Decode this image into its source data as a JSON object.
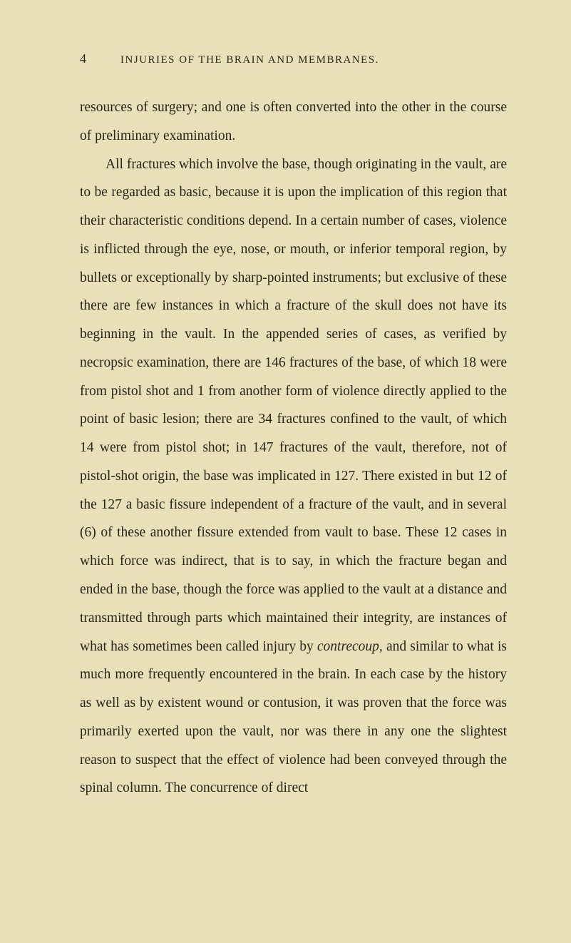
{
  "header": {
    "page_number": "4",
    "chapter_title": "INJURIES OF THE BRAIN AND MEMBRANES."
  },
  "paragraphs": {
    "p1": "resources of surgery; and one is often converted into the other in the course of preliminary examination.",
    "p2_part1": "All fractures which involve the base, though originating in the vault, are to be regarded as basic, because it is upon the implication of this region that their characteristic conditions depend. In a certain number of cases, violence is inflicted through the eye, nose, or mouth, or inferior temporal region, by bullets or exceptionally by sharp-pointed instruments; but exclusive of these there are few instances in which a fracture of the skull does not have its beginning in the vault. In the appended series of cases, as verified by necropsic examination, there are 146 fractures of the base, of which 18 were from pistol shot and 1 from another form of violence directly applied to the point of basic lesion; there are 34 fractures confined to the vault, of which 14 were from pistol shot; in 147 fractures of the vault, therefore, not of pistol-shot origin, the base was implicated in 127. There existed in but 12 of the 127 a basic fissure independent of a fracture of the vault, and in several (6) of these another fissure extended from vault to base. These 12 cases in which force was indirect, that is to say, in which the fracture began and ended in the base, though the force was applied to the vault at a distance and transmitted through parts which maintained their integrity, are instances of what has sometimes been called injury by ",
    "p2_italic": "contrecoup",
    "p2_part2": ", and similar to what is much more frequently encountered in the brain. In each case by the history as well as by existent wound or contusion, it was proven that the force was primarily exerted upon the vault, nor was there in any one the slightest reason to suspect that the effect of violence had been conveyed through the spinal column. The concurrence of direct"
  },
  "colors": {
    "background": "#e8e0b8",
    "text": "#2a2416"
  },
  "typography": {
    "body_fontsize": 19.5,
    "body_lineheight": 2.04,
    "header_fontsize": 15,
    "pagenum_fontsize": 18
  }
}
